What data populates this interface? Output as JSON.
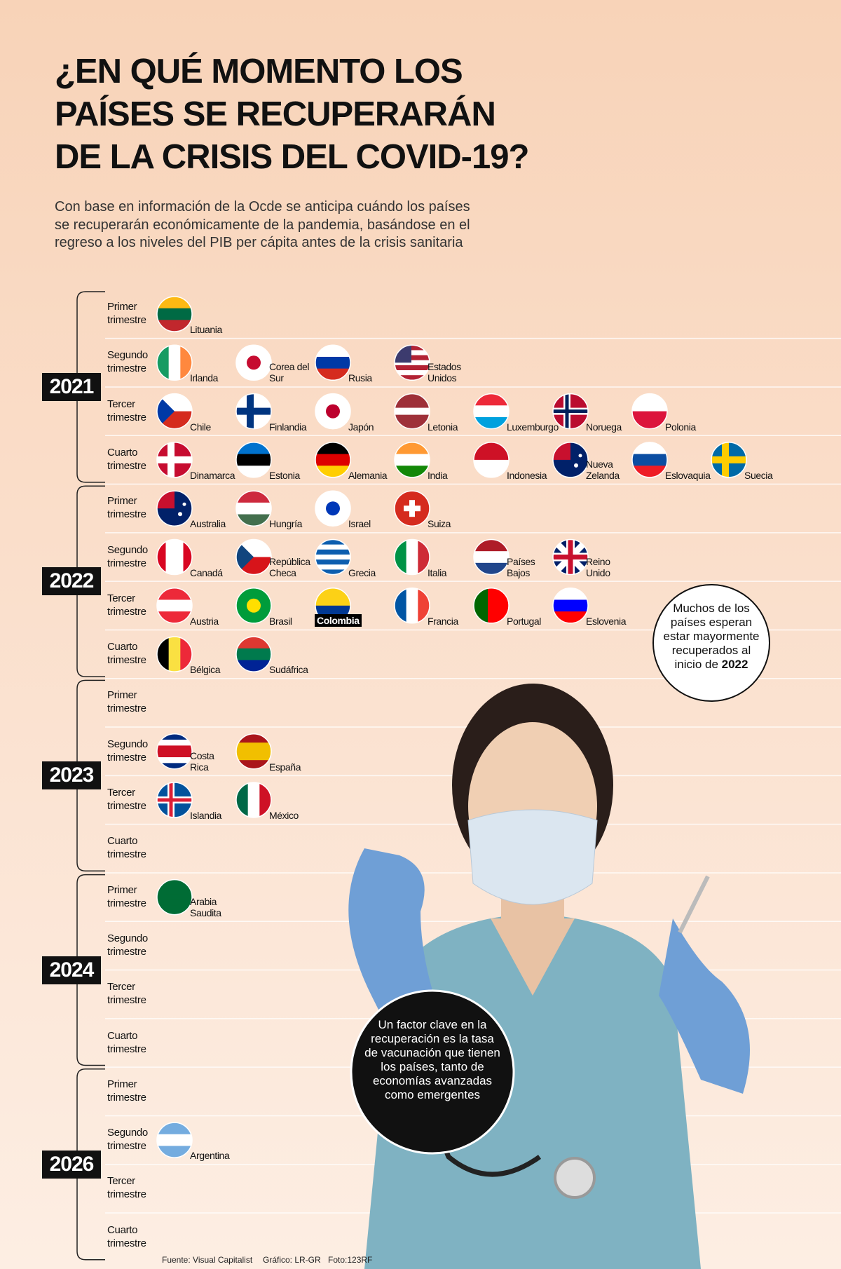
{
  "header": {
    "title": [
      "¿EN QUÉ MOMENTO LOS",
      "PAÍSES SE RECUPERARÁN",
      "DE LA CRISIS DEL COVID-19?"
    ],
    "subtitle": [
      "Con base en información de la Ocde se anticipa cuándo los países",
      "se recuperarán económicamente de la pandemia, basándose en el",
      "regreso a los niveles del PIB per cápita antes de la crisis sanitaria"
    ]
  },
  "years": [
    {
      "year": "2021",
      "quarters": [
        {
          "label": "Primer trimestre",
          "countries": [
            "Lituania"
          ]
        },
        {
          "label": "Segundo trimestre",
          "countries": [
            "Irlanda",
            "Corea del Sur",
            "Rusia",
            "Estados Unidos"
          ]
        },
        {
          "label": "Tercer trimestre",
          "countries": [
            "Chile",
            "Finlandia",
            "Japón",
            "Letonia",
            "Luxemburgo",
            "Noruega",
            "Polonia"
          ]
        },
        {
          "label": "Cuarto trimestre",
          "countries": [
            "Dinamarca",
            "Estonia",
            "Alemania",
            "India",
            "Indonesia",
            "Nueva Zelanda",
            "Eslovaquia",
            "Suecia"
          ]
        }
      ]
    },
    {
      "year": "2022",
      "quarters": [
        {
          "label": "Primer trimestre",
          "countries": [
            "Australia",
            "Hungría",
            "Israel",
            "Suiza"
          ]
        },
        {
          "label": "Segundo trimestre",
          "countries": [
            "Canadá",
            "República Checa",
            "Grecia",
            "Italia",
            "Países Bajos",
            "Reino Unido"
          ]
        },
        {
          "label": "Tercer trimestre",
          "countries": [
            "Austria",
            "Brasil",
            "Colombia",
            "Francia",
            "Portugal",
            "Eslovenia"
          ]
        },
        {
          "label": "Cuarto trimestre",
          "countries": [
            "Bélgica",
            "Sudáfrica"
          ]
        }
      ]
    },
    {
      "year": "2023",
      "quarters": [
        {
          "label": "Primer trimestre",
          "countries": []
        },
        {
          "label": "Segundo trimestre",
          "countries": [
            "Costa Rica",
            "España"
          ]
        },
        {
          "label": "Tercer trimestre",
          "countries": [
            "Islandia",
            "México"
          ]
        },
        {
          "label": "Cuarto trimestre",
          "countries": []
        }
      ]
    },
    {
      "year": "2024",
      "quarters": [
        {
          "label": "Primer trimestre",
          "countries": [
            "Arabia Saudita"
          ]
        },
        {
          "label": "Segundo trimestre",
          "countries": []
        },
        {
          "label": "Tercer trimestre",
          "countries": []
        },
        {
          "label": "Cuarto trimestre",
          "countries": []
        }
      ]
    },
    {
      "year": "2026",
      "quarters": [
        {
          "label": "Primer trimestre",
          "countries": []
        },
        {
          "label": "Segundo trimestre",
          "countries": [
            "Argentina"
          ]
        },
        {
          "label": "Tercer trimestre",
          "countries": []
        },
        {
          "label": "Cuarto trimestre",
          "countries": []
        }
      ]
    }
  ],
  "callouts": [
    {
      "text": "Muchos de los países esperan estar mayormente recuperados al inicio de",
      "bold": "2022"
    },
    {
      "text": "Un factor clave en la recuperación es la tasa de vacunación que tienen los países, tanto de economías avanzadas como emergentes"
    }
  ],
  "footer": [
    "Fuente: Visual Capitalist",
    "Gráfico: LR-GR",
    "Foto:123RF"
  ]
}
